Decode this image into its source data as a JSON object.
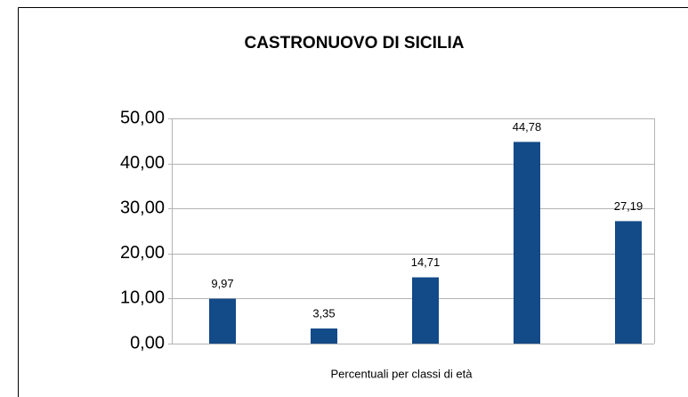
{
  "chart_data": {
    "type": "bar",
    "title": "CASTRONUOVO DI SICILIA",
    "x_label": "Percentuali per classi di età",
    "categories": [
      null,
      null,
      null,
      null,
      null
    ],
    "values": [
      9.97,
      3.35,
      14.71,
      44.78,
      27.19
    ],
    "value_labels": [
      "9,97",
      "3,35",
      "14,71",
      "44,78",
      "27,19"
    ],
    "color": "#134a88",
    "ylim": [
      0,
      50
    ],
    "yticks": [
      {
        "value": 0,
        "label": "0,00"
      },
      {
        "value": 10,
        "label": "10,00"
      },
      {
        "value": 20,
        "label": "20,00"
      },
      {
        "value": 30,
        "label": "30,00"
      },
      {
        "value": 40,
        "label": "40,00"
      },
      {
        "value": 50,
        "label": "50,00"
      }
    ],
    "grid": true
  }
}
